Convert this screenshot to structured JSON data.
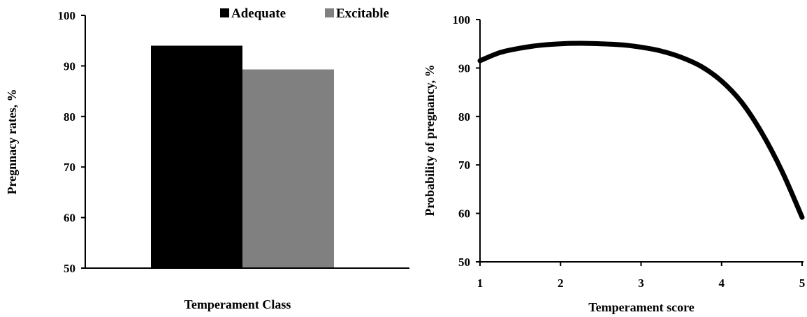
{
  "chart_data": [
    {
      "type": "bar",
      "categories": [
        ""
      ],
      "series": [
        {
          "name": "Adequate",
          "values": [
            94
          ],
          "color": "#000000"
        },
        {
          "name": "Excitable",
          "values": [
            89.3
          ],
          "color": "#808080"
        }
      ],
      "xlabel": "Temperament Class",
      "ylabel": "Pregnnacy rates, %",
      "ylim": [
        50,
        100
      ],
      "yticks": [
        "50",
        "60",
        "70",
        "80",
        "90",
        "100"
      ],
      "legend": "top-right",
      "grid": false
    },
    {
      "type": "line",
      "series": [
        {
          "values_x": [
            1.0,
            1.25,
            1.5,
            1.75,
            2.0,
            2.25,
            2.5,
            2.75,
            3.0,
            3.25,
            3.5,
            3.75,
            4.0,
            4.25,
            4.5,
            4.75,
            5.0
          ],
          "values_y": [
            91.5,
            93.2,
            94.1,
            94.7,
            95.0,
            95.1,
            95.0,
            94.8,
            94.3,
            93.5,
            92.2,
            90.3,
            87.3,
            82.9,
            76.6,
            68.7,
            59.2
          ],
          "color": "#000000"
        }
      ],
      "xlabel": "Temperament score",
      "ylabel": "Probability of pregnancy,  %",
      "xlim": [
        1,
        5
      ],
      "ylim": [
        50,
        100
      ],
      "xticks": [
        "1",
        "2",
        "3",
        "4",
        "5"
      ],
      "yticks": [
        "50",
        "60",
        "70",
        "80",
        "90",
        "100"
      ],
      "grid": false
    }
  ]
}
